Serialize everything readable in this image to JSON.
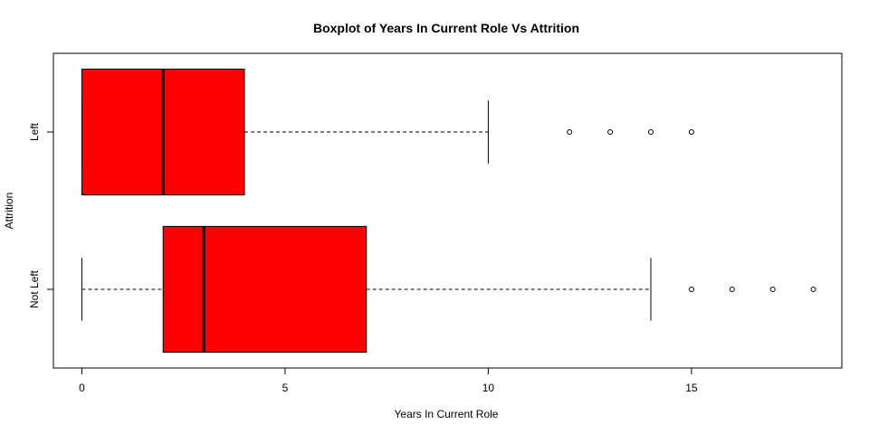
{
  "chart_data": {
    "type": "boxplot",
    "orientation": "horizontal",
    "title": "Boxplot of Years In Current Role Vs Attrition",
    "xlabel": "Years In Current Role",
    "ylabel": "Attrition",
    "xlim": [
      -0.7,
      18.7
    ],
    "x_ticks": [
      0,
      5,
      10,
      15
    ],
    "categories": [
      "Not Left",
      "Left"
    ],
    "box_color": "#ff0000",
    "series": [
      {
        "name": "Not Left",
        "min": 0,
        "q1": 2,
        "median": 3,
        "q3": 7,
        "max": 14,
        "outliers": [
          15,
          16,
          17,
          18
        ]
      },
      {
        "name": "Left",
        "min": 0,
        "q1": 0,
        "median": 2,
        "q3": 4,
        "max": 10,
        "outliers": [
          12,
          13,
          14,
          15
        ]
      }
    ]
  }
}
